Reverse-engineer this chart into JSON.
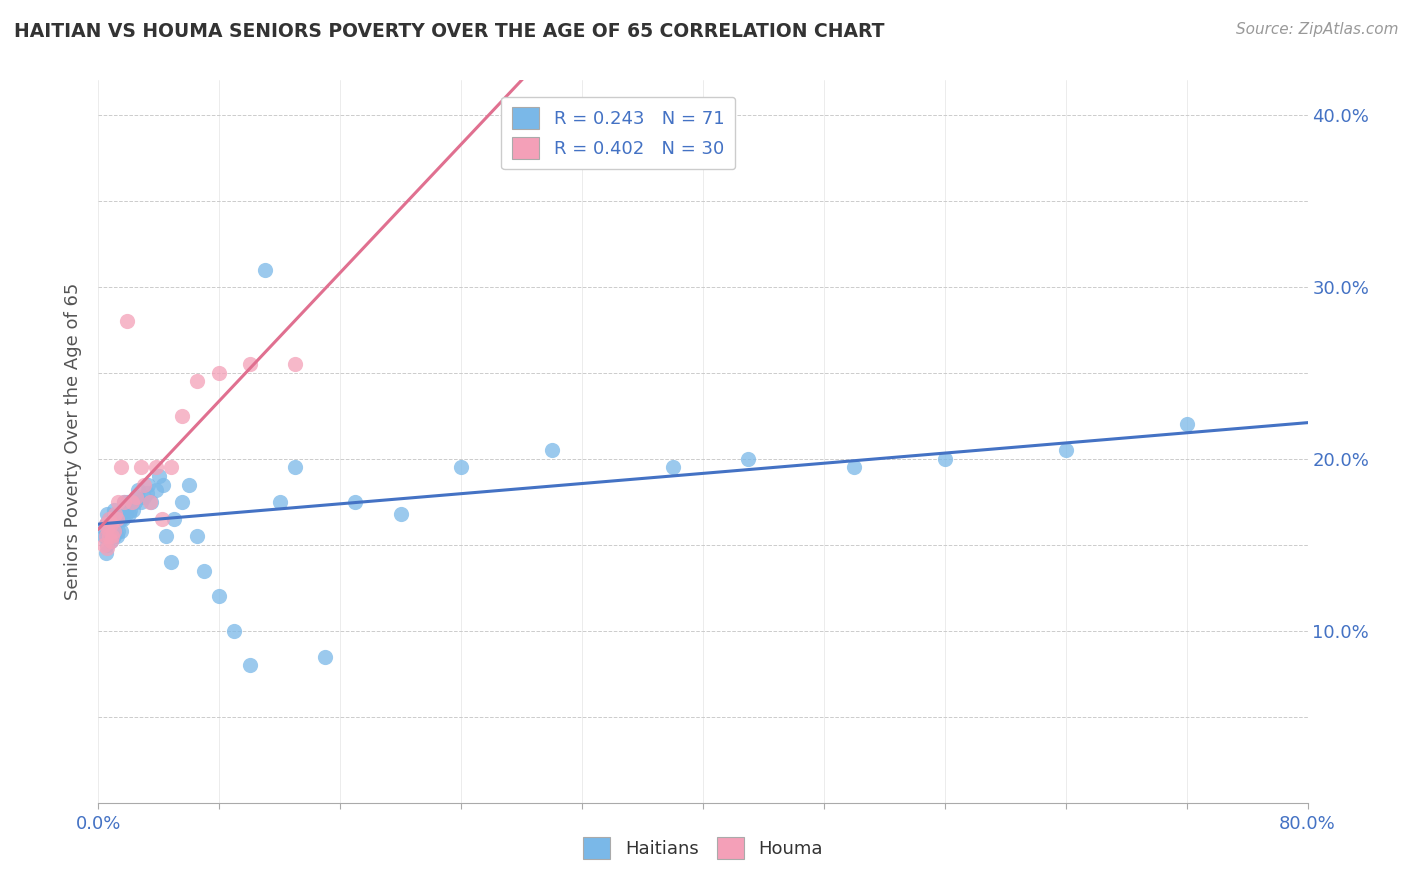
{
  "title": "HAITIAN VS HOUMA SENIORS POVERTY OVER THE AGE OF 65 CORRELATION CHART",
  "source_text": "Source: ZipAtlas.com",
  "ylabel": "Seniors Poverty Over the Age of 65",
  "xlim": [
    0.0,
    0.8
  ],
  "ylim": [
    0.0,
    0.42
  ],
  "x_tick_positions": [
    0.0,
    0.08,
    0.16,
    0.24,
    0.32,
    0.4,
    0.48,
    0.56,
    0.64,
    0.72,
    0.8
  ],
  "x_tick_labels": [
    "0.0%",
    "",
    "",
    "",
    "",
    "",
    "",
    "",
    "",
    "",
    "80.0%"
  ],
  "y_tick_positions": [
    0.0,
    0.05,
    0.1,
    0.15,
    0.2,
    0.25,
    0.3,
    0.35,
    0.4
  ],
  "y_tick_labels": [
    "",
    "",
    "10.0%",
    "",
    "20.0%",
    "",
    "30.0%",
    "",
    "40.0%"
  ],
  "haitian_color": "#7ab8e8",
  "houma_color": "#f4a0b8",
  "haitian_line_color": "#4472c4",
  "houma_line_color": "#e07090",
  "dashed_line_color": "#c0a0a8",
  "legend_text_color": "#4472c4",
  "legend_r_haitian": "R = 0.243",
  "legend_n_haitian": "N = 71",
  "legend_r_houma": "R = 0.402",
  "legend_n_houma": "N = 30",
  "haitian_x": [
    0.004,
    0.004,
    0.005,
    0.005,
    0.005,
    0.006,
    0.006,
    0.006,
    0.006,
    0.007,
    0.007,
    0.007,
    0.008,
    0.008,
    0.009,
    0.009,
    0.01,
    0.01,
    0.01,
    0.011,
    0.011,
    0.012,
    0.012,
    0.013,
    0.013,
    0.014,
    0.015,
    0.015,
    0.016,
    0.017,
    0.018,
    0.019,
    0.02,
    0.021,
    0.022,
    0.023,
    0.024,
    0.025,
    0.026,
    0.028,
    0.03,
    0.032,
    0.033,
    0.035,
    0.038,
    0.04,
    0.043,
    0.045,
    0.048,
    0.05,
    0.055,
    0.06,
    0.065,
    0.07,
    0.08,
    0.09,
    0.1,
    0.11,
    0.12,
    0.13,
    0.15,
    0.17,
    0.2,
    0.24,
    0.3,
    0.38,
    0.43,
    0.5,
    0.56,
    0.64,
    0.72
  ],
  "haitian_y": [
    0.155,
    0.16,
    0.145,
    0.155,
    0.162,
    0.15,
    0.157,
    0.162,
    0.168,
    0.155,
    0.16,
    0.165,
    0.152,
    0.158,
    0.155,
    0.162,
    0.155,
    0.16,
    0.17,
    0.158,
    0.168,
    0.155,
    0.165,
    0.158,
    0.168,
    0.165,
    0.158,
    0.165,
    0.165,
    0.175,
    0.168,
    0.175,
    0.168,
    0.17,
    0.175,
    0.17,
    0.175,
    0.178,
    0.182,
    0.175,
    0.178,
    0.18,
    0.185,
    0.175,
    0.182,
    0.19,
    0.185,
    0.155,
    0.14,
    0.165,
    0.175,
    0.185,
    0.155,
    0.135,
    0.12,
    0.1,
    0.08,
    0.31,
    0.175,
    0.195,
    0.085,
    0.175,
    0.168,
    0.195,
    0.205,
    0.195,
    0.2,
    0.195,
    0.2,
    0.205,
    0.22
  ],
  "houma_x": [
    0.004,
    0.005,
    0.005,
    0.006,
    0.006,
    0.007,
    0.007,
    0.008,
    0.008,
    0.009,
    0.01,
    0.011,
    0.012,
    0.013,
    0.015,
    0.017,
    0.019,
    0.022,
    0.025,
    0.028,
    0.03,
    0.034,
    0.038,
    0.042,
    0.048,
    0.055,
    0.065,
    0.08,
    0.1,
    0.13
  ],
  "houma_y": [
    0.15,
    0.155,
    0.162,
    0.148,
    0.16,
    0.155,
    0.165,
    0.152,
    0.162,
    0.155,
    0.158,
    0.168,
    0.165,
    0.175,
    0.195,
    0.175,
    0.28,
    0.175,
    0.178,
    0.195,
    0.185,
    0.175,
    0.195,
    0.165,
    0.195,
    0.225,
    0.245,
    0.25,
    0.255,
    0.255
  ]
}
